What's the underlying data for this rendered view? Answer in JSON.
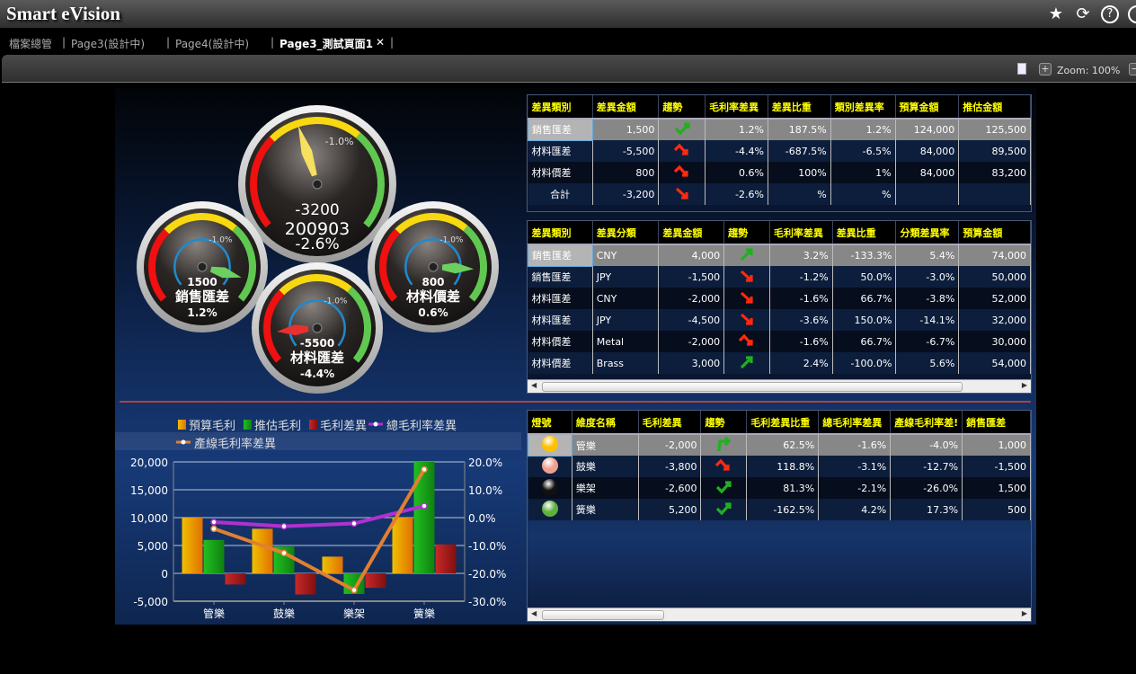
{
  "app": {
    "title": "Smart eVision",
    "icons": [
      "star-icon",
      "refresh-icon",
      "help-icon"
    ]
  },
  "tabs": [
    {
      "label": "檔案總管"
    },
    {
      "label": "Page3(設計中)"
    },
    {
      "label": "Page4(設計中)"
    },
    {
      "label": "Page3_測試頁面1",
      "active": true,
      "close": "✕"
    }
  ],
  "toolbar": {
    "zoom": "Zoom: 100%",
    "plus": "+",
    "minus": "−"
  },
  "gauges": [
    {
      "id": "total",
      "value": "-3200",
      "title": "200903",
      "percent": "-2.6%",
      "marker": "-1.0%",
      "needle_color": "#f5e060"
    },
    {
      "id": "sales",
      "value": "1500",
      "title": "銷售匯差",
      "percent": "1.2%",
      "marker": "-1.0%",
      "needle_color": "#6cd060"
    },
    {
      "id": "material-fx",
      "value": "-5500",
      "title": "材料匯差",
      "percent": "-4.4%",
      "marker": "-1.0%",
      "needle_color": "#e83030"
    },
    {
      "id": "material-price",
      "value": "800",
      "title": "材料價差",
      "percent": "0.6%",
      "marker": "-1.0%",
      "needle_color": "#6cd060"
    }
  ],
  "table1": {
    "headers": [
      "差異類別",
      "差異金額",
      "趨勢",
      "毛利率差異",
      "差異比重",
      "類別差異率",
      "預算金額",
      "推估金額"
    ],
    "rows": [
      [
        "銷售匯差",
        "1,500",
        "check-up",
        "1.2%",
        "187.5%",
        "1.2%",
        "124,000",
        "125,500"
      ],
      [
        "材料匯差",
        "-5,500",
        "zigzag-down",
        "-4.4%",
        "-687.5%",
        "-6.5%",
        "84,000",
        "89,500"
      ],
      [
        "材料價差",
        "800",
        "zigzag-down",
        "0.6%",
        "100%",
        "1%",
        "84,000",
        "83,200"
      ],
      [
        "合計",
        "-3,200",
        "arrow-down",
        "-2.6%",
        "%",
        "%",
        "",
        ""
      ]
    ]
  },
  "table2": {
    "headers": [
      "差異類別",
      "差異分類",
      "差異金額",
      "趨勢",
      "毛利率差異",
      "差異比重",
      "分類差異率",
      "預算金額"
    ],
    "rows": [
      [
        "銷售匯差",
        "CNY",
        "4,000",
        "arrow-up",
        "3.2%",
        "-133.3%",
        "5.4%",
        "74,000"
      ],
      [
        "銷售匯差",
        "JPY",
        "-1,500",
        "arrow-down",
        "-1.2%",
        "50.0%",
        "-3.0%",
        "50,000"
      ],
      [
        "材料匯差",
        "CNY",
        "-2,000",
        "arrow-down",
        "-1.6%",
        "66.7%",
        "-3.8%",
        "52,000"
      ],
      [
        "材料匯差",
        "JPY",
        "-4,500",
        "arrow-down",
        "-3.6%",
        "150.0%",
        "-14.1%",
        "32,000"
      ],
      [
        "材料價差",
        "Metal",
        "-2,000",
        "zigzag-down",
        "-1.6%",
        "66.7%",
        "-6.7%",
        "30,000"
      ],
      [
        "材料價差",
        "Brass",
        "3,000",
        "arrow-up",
        "2.4%",
        "-100.0%",
        "5.6%",
        "54,000"
      ]
    ]
  },
  "table3": {
    "headers": [
      "燈號",
      "維度名稱",
      "毛利差異",
      "趨勢",
      "毛利差異比重",
      "總毛利率差異",
      "產線毛利率差!",
      "銷售匯差"
    ],
    "rows": [
      [
        "#ffc000",
        "管樂",
        "-2,000",
        "turn-right",
        "62.5%",
        "-1.6%",
        "-4.0%",
        "1,000"
      ],
      [
        "#f0a090",
        "鼓樂",
        "-3,800",
        "zigzag-down",
        "118.8%",
        "-3.1%",
        "-12.7%",
        "-1,500"
      ],
      [
        "#111111",
        "樂架",
        "-2,600",
        "check-up",
        "81.3%",
        "-2.1%",
        "-26.0%",
        "1,500"
      ],
      [
        "#60b040",
        "簧樂",
        "5,200",
        "check-up",
        "-162.5%",
        "4.2%",
        "17.3%",
        "500"
      ]
    ]
  },
  "chart_data": {
    "type": "bar",
    "categories": [
      "管樂",
      "鼓樂",
      "樂架",
      "簧樂"
    ],
    "series": [
      {
        "name": "預算毛利",
        "kind": "bar",
        "axis": "left",
        "color": "#f0c000",
        "values": [
          10000,
          8000,
          3000,
          10000
        ]
      },
      {
        "name": "推估毛利",
        "kind": "bar",
        "axis": "left",
        "color": "#20c020",
        "values": [
          6000,
          4800,
          -3700,
          20000
        ]
      },
      {
        "name": "毛利差異",
        "kind": "bar",
        "axis": "left",
        "color": "#c82828",
        "values": [
          -2000,
          -3800,
          -2600,
          5200
        ]
      },
      {
        "name": "總毛利率差異",
        "kind": "line",
        "axis": "right",
        "color": "#b030d0",
        "values": [
          -1.6,
          -3.1,
          -2.1,
          4.2
        ]
      },
      {
        "name": "產線毛利率差異",
        "kind": "line",
        "axis": "right",
        "color": "#e08030",
        "values": [
          -4.0,
          -12.7,
          -26.0,
          17.3
        ]
      }
    ],
    "ylim": [
      -5000,
      20000
    ],
    "y_ticks": [
      "20,000",
      "15,000",
      "10,000",
      "5,000",
      "0",
      "-5,000"
    ],
    "y2lim": [
      -30,
      20
    ],
    "y2_ticks": [
      "20.0%",
      "10.0%",
      "0.0%",
      "-10.0%",
      "-20.0%",
      "-30.0%"
    ],
    "grid": true,
    "legend": "top"
  }
}
